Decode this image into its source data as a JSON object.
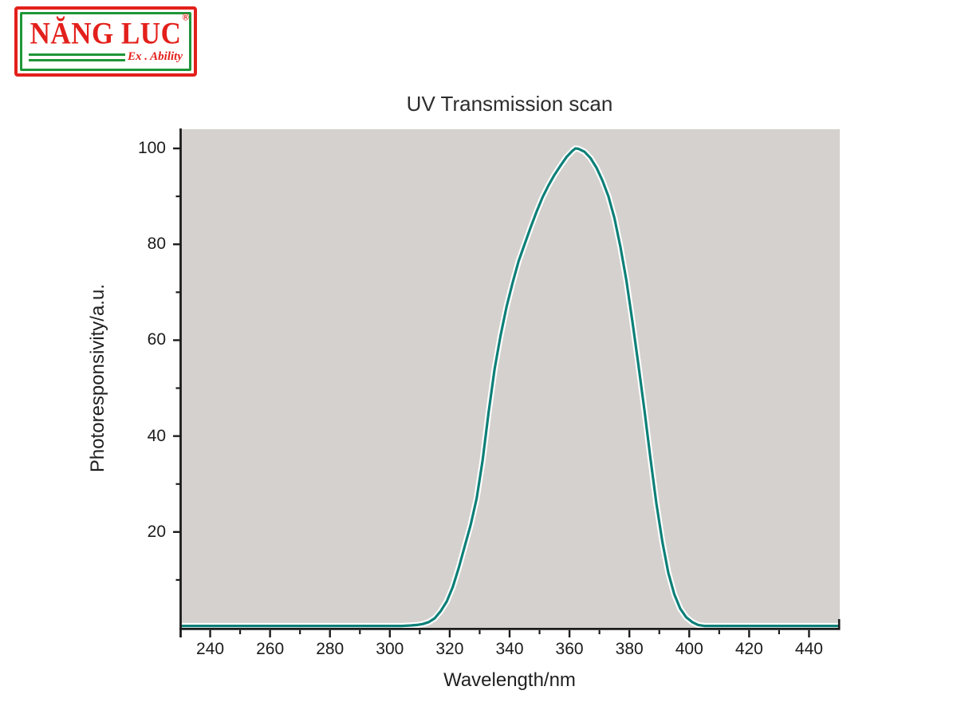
{
  "logo": {
    "brand_text": "NĂNG LUC",
    "registered_mark": "®",
    "tagline": "Ex . Ability",
    "red": "#e3201b",
    "green": "#1f9638"
  },
  "chart_data": {
    "type": "line",
    "title": "UV Transmission scan",
    "xlabel": "Wavelength/nm",
    "ylabel": "Photoresponsivity/a.u.",
    "xlim": [
      230,
      450
    ],
    "ylim": [
      0,
      104
    ],
    "x_ticks": [
      240,
      260,
      280,
      300,
      320,
      340,
      360,
      380,
      400,
      420,
      440
    ],
    "x_minor_ticks": [
      250,
      270,
      290,
      310,
      330,
      350,
      370,
      390,
      410,
      430
    ],
    "y_ticks": [
      20,
      40,
      60,
      80,
      100
    ],
    "y_minor_ticks": [
      10,
      30,
      50,
      70,
      90
    ],
    "grid": false,
    "legend": "none",
    "plot_bg": "#d4d1ce",
    "line_color": "#0d8078",
    "line_halo": "#ffffff",
    "axis_color": "#1c1c1c",
    "text_color": "#1f1f1f",
    "peak": {
      "wavelength_nm": 362,
      "value": 100
    },
    "series": [
      {
        "name": "UV transmission",
        "x": [
          230,
          240,
          250,
          260,
          270,
          280,
          290,
          295,
          300,
          304,
          307,
          309,
          311,
          313,
          315,
          317,
          319,
          321,
          323,
          325,
          327,
          329,
          331,
          333,
          335,
          337,
          339,
          341,
          343,
          345,
          347,
          349,
          351,
          353,
          355,
          357,
          359,
          361,
          362,
          363,
          365,
          367,
          369,
          371,
          373,
          375,
          377,
          379,
          381,
          383,
          385,
          387,
          389,
          391,
          393,
          395,
          397,
          399,
          401,
          403,
          405,
          408,
          412,
          416,
          420,
          425,
          430,
          435,
          440,
          445,
          450
        ],
        "y": [
          0.4,
          0.4,
          0.4,
          0.4,
          0.4,
          0.4,
          0.4,
          0.4,
          0.4,
          0.4,
          0.5,
          0.6,
          0.8,
          1.2,
          2,
          3.5,
          5.5,
          8.5,
          12.5,
          17,
          21.5,
          27,
          35,
          45,
          54,
          61,
          67,
          72,
          76.5,
          80,
          83.5,
          86.8,
          89.8,
          92.3,
          94.5,
          96.4,
          98.2,
          99.5,
          100,
          99.9,
          99.3,
          98,
          96,
          93.3,
          90,
          85.5,
          79.5,
          72.5,
          64,
          55,
          45.5,
          35.5,
          26,
          18,
          11.5,
          7,
          4,
          2.2,
          1.2,
          0.6,
          0.4,
          0.4,
          0.4,
          0.4,
          0.4,
          0.4,
          0.4,
          0.4,
          0.4,
          0.4,
          0.4
        ]
      }
    ]
  }
}
